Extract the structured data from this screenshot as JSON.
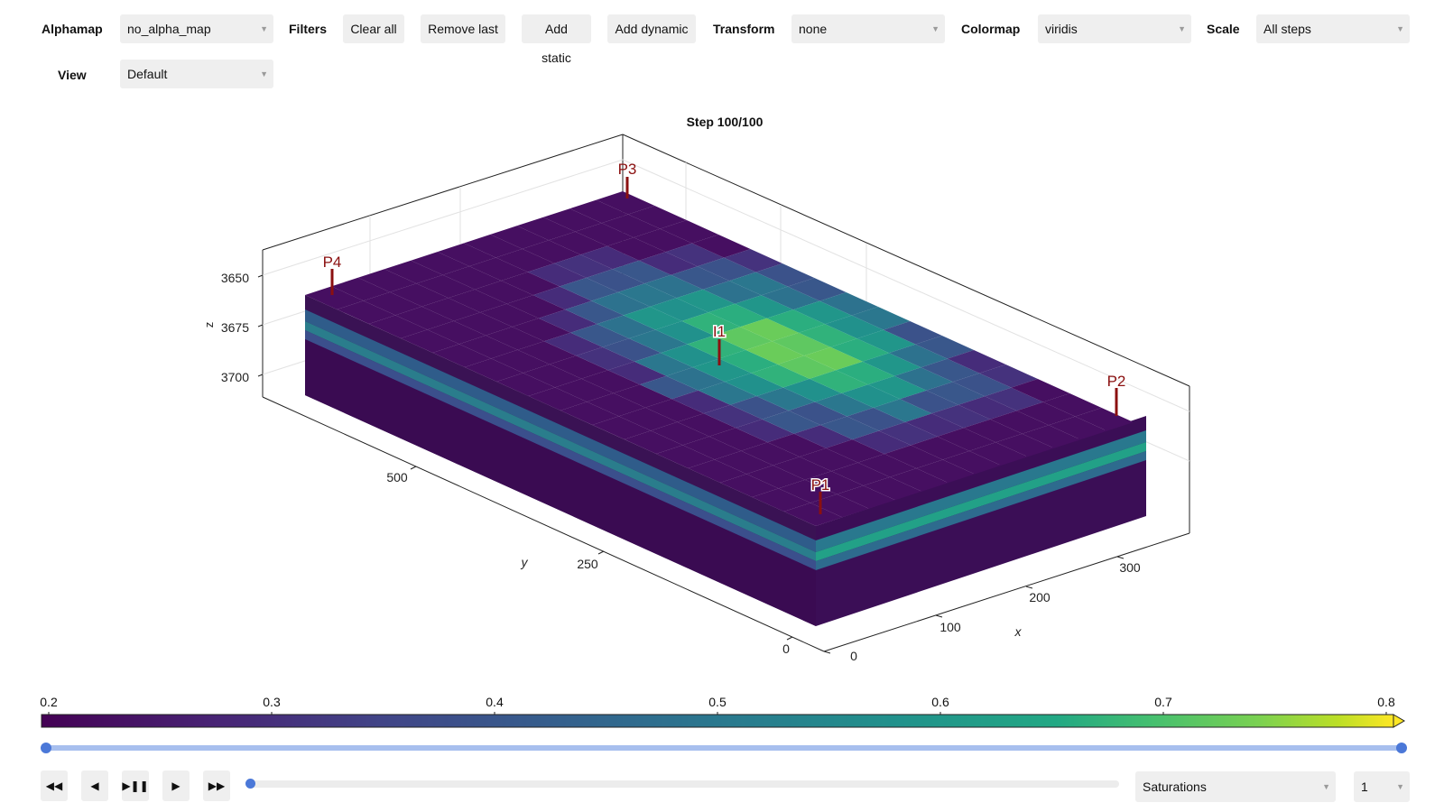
{
  "toolbar": {
    "alphamap_label": "Alphamap",
    "alphamap_value": "no_alpha_map",
    "filters_label": "Filters",
    "clear_all": "Clear all",
    "remove_last": "Remove last",
    "add_static": "Add static",
    "add_dynamic": "Add dynamic",
    "transform_label": "Transform",
    "transform_value": "none",
    "colormap_label": "Colormap",
    "colormap_value": "viridis",
    "scale_label": "Scale",
    "scale_value": "All steps",
    "view_label": "View",
    "view_value": "Default"
  },
  "plot": {
    "title": "Step 100/100",
    "z_label": "z",
    "z_ticks": [
      "3650",
      "3675",
      "3700"
    ],
    "y_label": "y",
    "y_ticks": [
      "0",
      "250",
      "500"
    ],
    "x_label": "x",
    "x_ticks": [
      "0",
      "100",
      "200",
      "300"
    ],
    "wells": [
      "P3",
      "P4",
      "I1",
      "P2",
      "P1"
    ],
    "well_color": "#8b1010"
  },
  "colorbar": {
    "ticks": [
      "0.2",
      "0.3",
      "0.4",
      "0.5",
      "0.6",
      "0.7",
      "0.8"
    ],
    "colormap": "viridis"
  },
  "range_slider": {
    "low": 0.0,
    "high": 1.0,
    "color": "#4b78d8"
  },
  "playback": {
    "step_slider_value": 0.0,
    "field_value": "Saturations",
    "speed_value": "1",
    "icons": [
      "rewind-icon",
      "step-back-icon",
      "play-pause-icon",
      "play-icon",
      "fast-forward-icon"
    ]
  }
}
